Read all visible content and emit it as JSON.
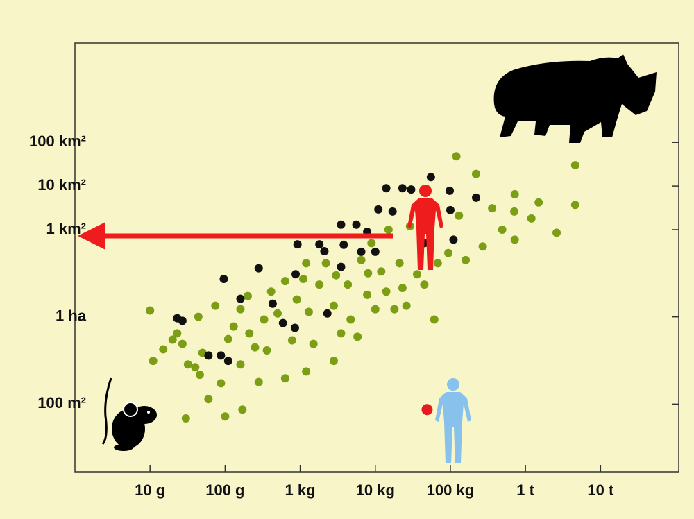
{
  "chart_data": {
    "type": "scatter",
    "xscale": "log",
    "yscale": "log",
    "xlim": [
      1,
      110000000
    ],
    "ylim": [
      2.8,
      19000000000
    ],
    "xticks": [
      {
        "value": 10,
        "label": "10 g"
      },
      {
        "value": 100,
        "label": "100 g"
      },
      {
        "value": 1000,
        "label": "1 kg"
      },
      {
        "value": 10000,
        "label": "10 kg"
      },
      {
        "value": 100000,
        "label": "100 kg"
      },
      {
        "value": 1000000,
        "label": "1 t"
      },
      {
        "value": 10000000,
        "label": "10 t"
      }
    ],
    "yticks": [
      {
        "value": 100,
        "label": "100 m²"
      },
      {
        "value": 10000,
        "label": "1 ha"
      },
      {
        "value": 1000000,
        "label": "1 km²"
      },
      {
        "value": 10000000,
        "label": "10 km²"
      },
      {
        "value": 100000000,
        "label": "100 km²"
      }
    ],
    "series": [
      {
        "color": "#7c9e14",
        "x": [
          10,
          11,
          30,
          23,
          27,
          32,
          44,
          46,
          60,
          74,
          88,
          100,
          110,
          160,
          160,
          170,
          210,
          280,
          330,
          360,
          410,
          630,
          630,
          780,
          1100,
          1200,
          1300,
          1500,
          1800,
          2200,
          2800,
          3500,
          4300,
          4700,
          5800,
          6500,
          7800,
          8900,
          10000,
          12000,
          14000,
          15000,
          18000,
          21000,
          23000,
          26000,
          29000,
          36000,
          61000,
          68000,
          94000,
          120000,
          130000,
          160000,
          220000,
          270000,
          360000,
          490000,
          710000,
          720000,
          720000,
          1200000,
          1500000,
          2600000,
          4600000,
          4600000,
          45000,
          2800,
          1200,
          20,
          50,
          130,
          250,
          500,
          900,
          3000,
          8000,
          40,
          200,
          15
        ],
        "values": [
          14000,
          980,
          47,
          4200,
          2400,
          810,
          10000,
          470,
          130,
          18000,
          300,
          52,
          3100,
          15000,
          810,
          75,
          4200,
          320,
          8700,
          1700,
          38000,
          66000,
          390,
          2900,
          74000,
          560,
          13000,
          2400,
          55000,
          170000,
          18000,
          4200,
          55000,
          8700,
          3500,
          200000,
          32000,
          490000,
          15000,
          110000,
          38000,
          1000000,
          15000,
          170000,
          46000,
          18000,
          1200000,
          95000,
          8700,
          170000,
          290000,
          48000000,
          2100000,
          200000,
          19000000,
          410000,
          3100000,
          1000000,
          2600000,
          590000,
          6500000,
          1800000,
          4200000,
          850000,
          30000000,
          3700000,
          55000,
          980,
          170000,
          3000,
          1500,
          6000,
          2000,
          12000,
          25000,
          90000,
          100000,
          700,
          30000,
          1800
        ]
      },
      {
        "color": "#111111",
        "x": [
          23,
          27,
          96,
          280,
          160,
          88,
          430,
          590,
          920,
          870,
          1800,
          2100,
          3500,
          5600,
          7800,
          11000,
          14000,
          23000,
          30000,
          55000,
          98000,
          100000,
          220000,
          3500,
          3800,
          6500,
          10000,
          2300,
          850,
          45000,
          110000,
          17000,
          60,
          110
        ],
        "values": [
          9300,
          8100,
          74000,
          130000,
          26000,
          1300,
          20000,
          7200,
          460000,
          95000,
          460000,
          320000,
          1300000,
          1300000,
          890000,
          2900000,
          8900000,
          8900000,
          8300000,
          16000000,
          7800000,
          2800000,
          5400000,
          140000,
          450000,
          310000,
          310000,
          12000,
          5600,
          490000,
          590000,
          2600000,
          1300,
          980
        ]
      },
      {
        "color": "#e8191f",
        "x": [
          49000
        ],
        "values": [
          75
        ]
      }
    ]
  }
}
